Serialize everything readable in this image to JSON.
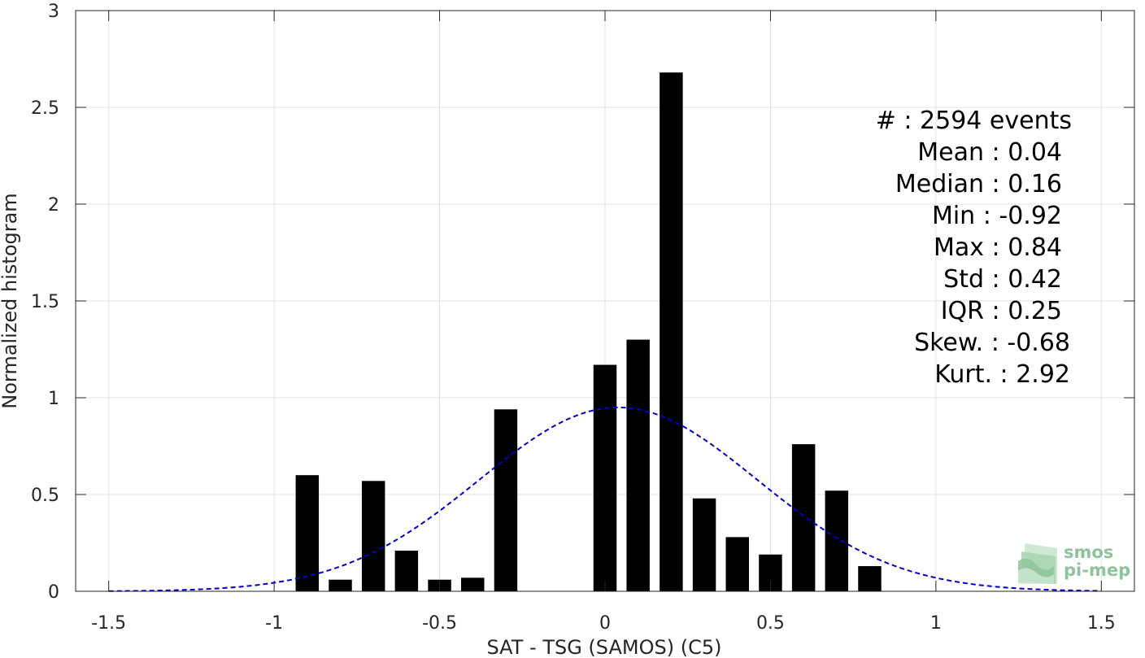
{
  "chart_data": {
    "type": "bar",
    "xlabel": "SAT - TSG (SAMOS) (C5)",
    "ylabel": "Normalized histogram",
    "xlim": [
      -1.6,
      1.6
    ],
    "ylim": [
      0,
      3
    ],
    "xticks": [
      -1.5,
      -1,
      -0.5,
      0,
      0.5,
      1,
      1.5
    ],
    "xtick_labels": [
      "-1.5",
      "-1",
      "-0.5",
      "0",
      "0.5",
      "1",
      "1.5"
    ],
    "yticks": [
      0,
      0.5,
      1,
      1.5,
      2,
      2.5,
      3
    ],
    "ytick_labels": [
      "0",
      "0.5",
      "1",
      "1.5",
      "2",
      "2.5",
      "3"
    ],
    "grid": true,
    "bar_width": 0.07,
    "bars": [
      {
        "x": -0.9,
        "value": 0.6
      },
      {
        "x": -0.8,
        "value": 0.06
      },
      {
        "x": -0.7,
        "value": 0.57
      },
      {
        "x": -0.6,
        "value": 0.21
      },
      {
        "x": -0.5,
        "value": 0.06
      },
      {
        "x": -0.4,
        "value": 0.07
      },
      {
        "x": -0.3,
        "value": 0.94
      },
      {
        "x": 0.0,
        "value": 1.17
      },
      {
        "x": 0.1,
        "value": 1.3
      },
      {
        "x": 0.2,
        "value": 2.68
      },
      {
        "x": 0.3,
        "value": 0.48
      },
      {
        "x": 0.4,
        "value": 0.28
      },
      {
        "x": 0.5,
        "value": 0.19
      },
      {
        "x": 0.6,
        "value": 0.76
      },
      {
        "x": 0.7,
        "value": 0.52
      },
      {
        "x": 0.8,
        "value": 0.13
      }
    ],
    "fit": {
      "type": "gaussian",
      "mean": 0.04,
      "std": 0.42,
      "range": [
        -1.5,
        1.5
      ],
      "color": "#0000cc",
      "style": "dashed"
    },
    "bar_color": "#000000",
    "stats": [
      {
        "label": "#  : 2594 events"
      },
      {
        "label": "Mean : 0.04"
      },
      {
        "label": "Median : 0.16"
      },
      {
        "label": "Min : -0.92"
      },
      {
        "label": "Max : 0.84"
      },
      {
        "label": "Std : 0.42"
      },
      {
        "label": "IQR : 0.25"
      },
      {
        "label": "Skew. : -0.68"
      },
      {
        "label": "Kurt. : 2.92"
      }
    ]
  },
  "logo": {
    "line1": "smos",
    "line2": "pi-mep",
    "color": "#8fc49a"
  }
}
